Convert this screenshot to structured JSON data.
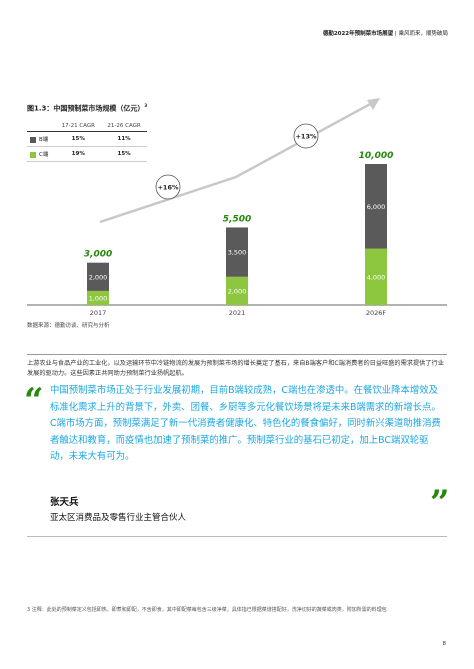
{
  "header": {
    "report": "德勤2022年预制菜市场展望",
    "separator": "|",
    "tagline": "乘风而来，顺势破局"
  },
  "figure": {
    "title": "图1.3：中国预制菜市场规模（亿元）",
    "note_mark": "3",
    "source": "数据来源：德勤访谈、研究与分析"
  },
  "cagr_table": {
    "headers": [
      "",
      "17-21 CAGR",
      "21-26 CAGR"
    ],
    "rows": [
      {
        "label": "B端",
        "color": "#5a5a5a",
        "v1": "15%",
        "v2": "11%"
      },
      {
        "label": "C端",
        "color": "#8dc63f",
        "v1": "19%",
        "v2": "15%"
      }
    ]
  },
  "chart_data": {
    "type": "bar",
    "stacked": true,
    "categories": [
      "2017",
      "2021",
      "2026F"
    ],
    "series": [
      {
        "name": "C端",
        "color": "#8dc63f",
        "values": [
          1000,
          2000,
          4000
        ],
        "labels": [
          "1,000",
          "2,000",
          "4,000"
        ]
      },
      {
        "name": "B端",
        "color": "#5a5a5a",
        "values": [
          2000,
          3500,
          6000
        ],
        "labels": [
          "2,000",
          "3,500",
          "6,000"
        ]
      }
    ],
    "totals": [
      "3,000",
      "5,500",
      "10,000"
    ],
    "total_color": "#26890d",
    "growth_annotations": [
      "+16%",
      "+13%"
    ],
    "ylim": [
      0,
      10000
    ]
  },
  "paragraph": "上游农业与食品产业的工业化，以及运输环节中冷链物流的发展为预制菜市场的增长奠定了基石，来自B端客户和C端消费者的日益旺盛的需求提供了行业发展的驱动力。这些因素正共同助力预制菜行业扬帆起航。",
  "quote": {
    "open_mark": "“",
    "close_mark": "”",
    "text": "中国预制菜市场正处于行业发展初期，目前B端较成熟，C端也在渗透中。在餐饮业降本增效及标准化需求上升的背景下，外卖、团餐、乡厨等多元化餐饮场景将是未来B端需求的新增长点。C端市场方面，预制菜满足了新一代消费者健康化、特色化的餐食偏好，同时新兴渠道助推消费者触达和教育，而疫情也加速了预制菜的推广。预制菜行业的基石已初定，加上BC端双轮驱动，未来大有可为。",
    "author": "张天兵",
    "author_title": "亚太区消费品及零售行业主管合伙人"
  },
  "footnote": "3 注释：此处的预制菜定义包括即热、即煮和即配，不含即食，其中即配菜每包含三级净菜，具体指已根据菜谱搭配好，洗净切好的蔬菜或肉类，附加所需的料理包",
  "page_number": "8"
}
